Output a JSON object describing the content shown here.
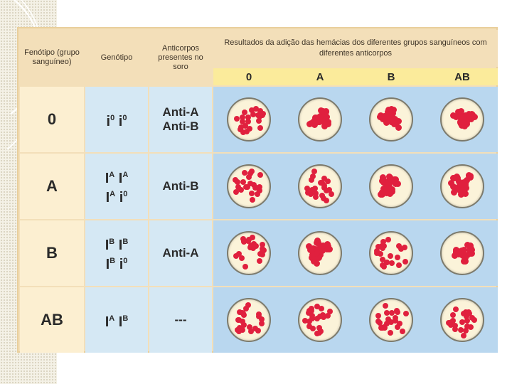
{
  "header": {
    "phenotype": "Fenótipo (grupo sanguíneo)",
    "genotype": "Genótipo",
    "antibodies": "Anticorpos presentes no soro",
    "results": "Resultados da adição das hemácias dos diferentes grupos sanguíneos com diferentes anticorpos",
    "blood_groups": [
      "0",
      "A",
      "B",
      "AB"
    ]
  },
  "rows": [
    {
      "phenotype": "0",
      "genotype": [
        [
          {
            "base": "i",
            "sup": "0"
          },
          {
            "base": "i",
            "sup": "0"
          }
        ]
      ],
      "antibodies": [
        "Anti-A",
        "Anti-B"
      ],
      "agglutinated": [
        false,
        true,
        true,
        true
      ]
    },
    {
      "phenotype": "A",
      "genotype": [
        [
          {
            "base": "I",
            "sup": "A"
          },
          {
            "base": "I",
            "sup": "A"
          }
        ],
        [
          {
            "base": "I",
            "sup": "A"
          },
          {
            "base": "i",
            "sup": "0"
          }
        ]
      ],
      "antibodies": [
        "Anti-B"
      ],
      "agglutinated": [
        false,
        false,
        true,
        true
      ]
    },
    {
      "phenotype": "B",
      "genotype": [
        [
          {
            "base": "I",
            "sup": "B"
          },
          {
            "base": "I",
            "sup": "B"
          }
        ],
        [
          {
            "base": "I",
            "sup": "B"
          },
          {
            "base": "i",
            "sup": "0"
          }
        ]
      ],
      "antibodies": [
        "Anti-A"
      ],
      "agglutinated": [
        false,
        true,
        false,
        true
      ]
    },
    {
      "phenotype": "AB",
      "genotype": [
        [
          {
            "base": "I",
            "sup": "A"
          },
          {
            "base": "I",
            "sup": "B"
          }
        ]
      ],
      "antibodies": [
        "---"
      ],
      "agglutinated": [
        false,
        false,
        false,
        false
      ]
    }
  ],
  "colors": {
    "header_bg": "#f3dfb9",
    "blood_group_bar": "#fbeb9b",
    "phenotype_bg": "#fcefd1",
    "genotype_bg": "#d5e8f4",
    "results_bg": "#b9d7ef",
    "dish_bg": "#fbf3d9",
    "cell_red": "#e0203e"
  }
}
